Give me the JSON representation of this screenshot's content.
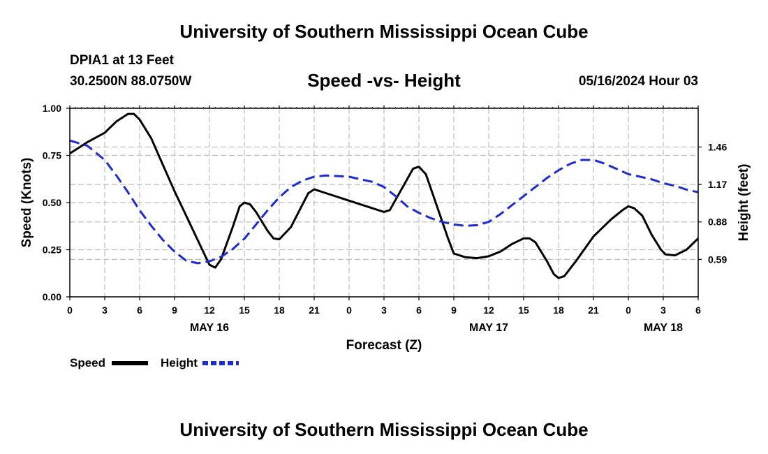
{
  "header": {
    "title_top": "University of Southern Mississippi Ocean Cube",
    "station": "DPIA1 at 13 Feet",
    "coords": "30.2500N  88.0750W",
    "datetime": "05/16/2024 Hour 03",
    "title_bottom": "University of Southern Mississippi Ocean Cube"
  },
  "chart_data": {
    "type": "line",
    "title": "Speed -vs- Height",
    "xlabel": "Forecast (Z)",
    "ylabel": "Speed (Knots)",
    "y2label": "Height (feet)",
    "x_unit": "hours from 00Z May 16",
    "xlim": [
      0,
      54
    ],
    "ylim": [
      0,
      1
    ],
    "y2lim": [
      0.3,
      1.76
    ],
    "x_ticks": [
      {
        "x": 0,
        "label": "0"
      },
      {
        "x": 3,
        "label": "3"
      },
      {
        "x": 6,
        "label": "6"
      },
      {
        "x": 9,
        "label": "9"
      },
      {
        "x": 12,
        "label": "12"
      },
      {
        "x": 15,
        "label": "15"
      },
      {
        "x": 18,
        "label": "18"
      },
      {
        "x": 21,
        "label": "21"
      },
      {
        "x": 24,
        "label": "0"
      },
      {
        "x": 27,
        "label": "3"
      },
      {
        "x": 30,
        "label": "6"
      },
      {
        "x": 33,
        "label": "9"
      },
      {
        "x": 36,
        "label": "12"
      },
      {
        "x": 39,
        "label": "15"
      },
      {
        "x": 42,
        "label": "18"
      },
      {
        "x": 45,
        "label": "21"
      },
      {
        "x": 48,
        "label": "0"
      },
      {
        "x": 51,
        "label": "3"
      },
      {
        "x": 54,
        "label": "6"
      }
    ],
    "date_labels": [
      {
        "x": 12,
        "label": "MAY 16"
      },
      {
        "x": 36,
        "label": "MAY 17"
      },
      {
        "x": 51,
        "label": "MAY 18"
      }
    ],
    "y_ticks": [
      {
        "v": 0,
        "label": "0.00"
      },
      {
        "v": 0.25,
        "label": "0.25"
      },
      {
        "v": 0.5,
        "label": "0.50"
      },
      {
        "v": 0.75,
        "label": "0.75"
      },
      {
        "v": 1.0,
        "label": "1.00"
      }
    ],
    "y2_ticks": [
      {
        "v": 0.59,
        "label": "0.59"
      },
      {
        "v": 0.88,
        "label": "0.88"
      },
      {
        "v": 1.17,
        "label": "1.17"
      },
      {
        "v": 1.46,
        "label": "1.46"
      }
    ],
    "series": [
      {
        "name": "Speed",
        "axis": "left",
        "color": "#000000",
        "dash": "none",
        "points": [
          [
            0,
            0.76
          ],
          [
            1.5,
            0.82
          ],
          [
            3,
            0.87
          ],
          [
            4,
            0.93
          ],
          [
            5,
            0.97
          ],
          [
            5.5,
            0.97
          ],
          [
            6,
            0.94
          ],
          [
            7,
            0.84
          ],
          [
            8,
            0.7
          ],
          [
            9,
            0.56
          ],
          [
            10,
            0.43
          ],
          [
            11,
            0.3
          ],
          [
            12,
            0.17
          ],
          [
            12.5,
            0.155
          ],
          [
            13,
            0.2
          ],
          [
            14,
            0.37
          ],
          [
            14.6,
            0.48
          ],
          [
            15,
            0.5
          ],
          [
            15.5,
            0.49
          ],
          [
            16,
            0.45
          ],
          [
            17,
            0.35
          ],
          [
            17.5,
            0.31
          ],
          [
            18,
            0.305
          ],
          [
            19,
            0.37
          ],
          [
            20,
            0.49
          ],
          [
            20.5,
            0.55
          ],
          [
            21,
            0.57
          ],
          [
            22,
            0.55
          ],
          [
            24,
            0.51
          ],
          [
            26,
            0.47
          ],
          [
            27,
            0.45
          ],
          [
            27.5,
            0.46
          ],
          [
            28.5,
            0.57
          ],
          [
            29.5,
            0.68
          ],
          [
            30,
            0.69
          ],
          [
            30.6,
            0.65
          ],
          [
            31.5,
            0.49
          ],
          [
            32.5,
            0.31
          ],
          [
            33,
            0.23
          ],
          [
            34,
            0.21
          ],
          [
            35,
            0.205
          ],
          [
            36,
            0.215
          ],
          [
            37,
            0.24
          ],
          [
            38,
            0.28
          ],
          [
            39,
            0.31
          ],
          [
            39.5,
            0.31
          ],
          [
            40,
            0.29
          ],
          [
            41,
            0.19
          ],
          [
            41.6,
            0.12
          ],
          [
            42,
            0.1
          ],
          [
            42.5,
            0.11
          ],
          [
            43.5,
            0.19
          ],
          [
            45,
            0.32
          ],
          [
            46.5,
            0.41
          ],
          [
            47.5,
            0.46
          ],
          [
            48,
            0.48
          ],
          [
            48.5,
            0.47
          ],
          [
            49.2,
            0.43
          ],
          [
            50,
            0.33
          ],
          [
            50.8,
            0.25
          ],
          [
            51.2,
            0.225
          ],
          [
            52,
            0.22
          ],
          [
            53,
            0.25
          ],
          [
            54,
            0.31
          ]
        ]
      },
      {
        "name": "Height",
        "axis": "right",
        "color": "#1a2bd0",
        "dash": "14,7",
        "points": [
          [
            0,
            1.51
          ],
          [
            1.5,
            1.47
          ],
          [
            3,
            1.36
          ],
          [
            4,
            1.24
          ],
          [
            5,
            1.11
          ],
          [
            6,
            0.97
          ],
          [
            7,
            0.85
          ],
          [
            8,
            0.74
          ],
          [
            9,
            0.65
          ],
          [
            10,
            0.58
          ],
          [
            11,
            0.56
          ],
          [
            12,
            0.575
          ],
          [
            13,
            0.61
          ],
          [
            14,
            0.67
          ],
          [
            15,
            0.75
          ],
          [
            16,
            0.86
          ],
          [
            17,
            0.97
          ],
          [
            18,
            1.07
          ],
          [
            19,
            1.15
          ],
          [
            20,
            1.2
          ],
          [
            21,
            1.23
          ],
          [
            22,
            1.24
          ],
          [
            24,
            1.23
          ],
          [
            26,
            1.19
          ],
          [
            27,
            1.15
          ],
          [
            28,
            1.08
          ],
          [
            29,
            1.0
          ],
          [
            30,
            0.95
          ],
          [
            31,
            0.91
          ],
          [
            32,
            0.88
          ],
          [
            33,
            0.86
          ],
          [
            34,
            0.85
          ],
          [
            35,
            0.855
          ],
          [
            36,
            0.88
          ],
          [
            37,
            0.94
          ],
          [
            38,
            1.01
          ],
          [
            39,
            1.08
          ],
          [
            40,
            1.15
          ],
          [
            41,
            1.22
          ],
          [
            42,
            1.28
          ],
          [
            43,
            1.33
          ],
          [
            44,
            1.36
          ],
          [
            45,
            1.36
          ],
          [
            46,
            1.33
          ],
          [
            47,
            1.29
          ],
          [
            48,
            1.25
          ],
          [
            49,
            1.23
          ],
          [
            50,
            1.21
          ],
          [
            51,
            1.18
          ],
          [
            52,
            1.16
          ],
          [
            53,
            1.13
          ],
          [
            54,
            1.11
          ]
        ]
      }
    ],
    "legend": [
      {
        "label": "Speed",
        "color": "#000000",
        "dash": "none"
      },
      {
        "label": "Height",
        "color": "#1a2bd0",
        "dash": "8,4"
      }
    ]
  }
}
